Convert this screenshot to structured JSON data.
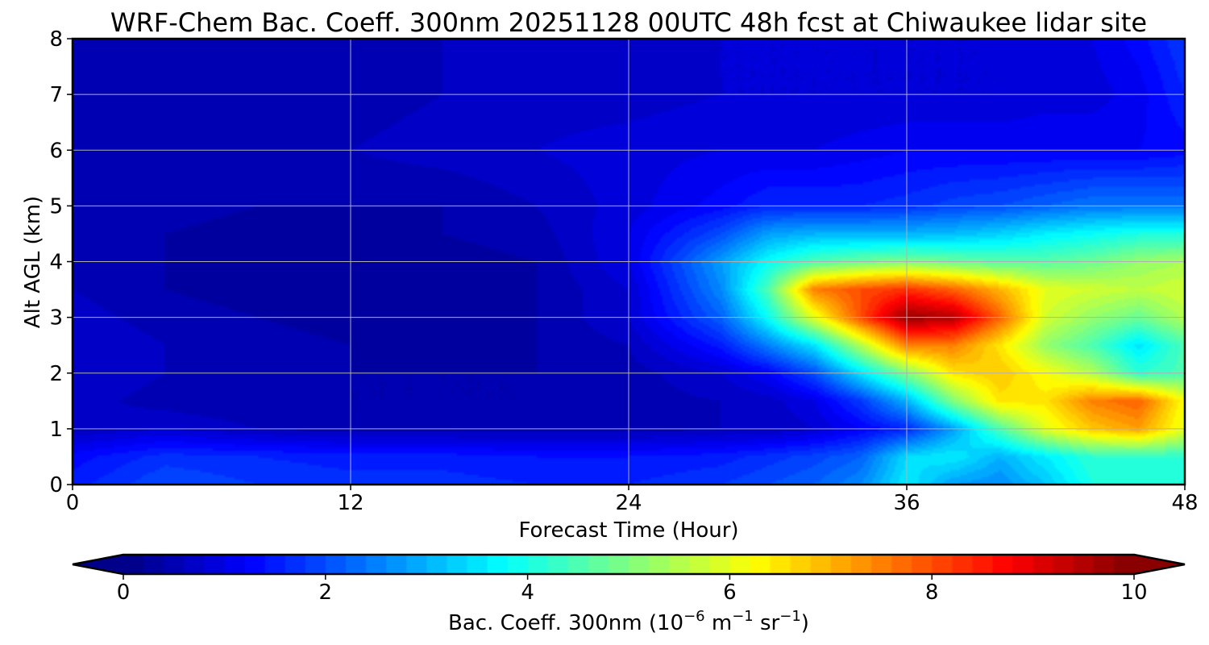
{
  "chart_data": {
    "type": "heatmap",
    "title": "WRF-Chem Bac. Coeff. 300nm  20251128 00UTC 48h fcst at Chiwaukee lidar site",
    "xlabel": "Forecast Time (Hour)",
    "ylabel": "Alt AGL (km)",
    "xlim": [
      0,
      48
    ],
    "ylim": [
      0,
      8
    ],
    "xticks": [
      "0",
      "12",
      "24",
      "36",
      "48"
    ],
    "yticks": [
      "0",
      "1",
      "2",
      "3",
      "4",
      "5",
      "6",
      "7",
      "8"
    ],
    "grid": true,
    "colormap": "jet",
    "colorbar": {
      "label_main": "Bac. Coeff. 300nm  (10",
      "label_exp1": "−6",
      "label_mid": " m",
      "label_exp2": "−1",
      "label_mid2": " sr",
      "label_exp3": "−1",
      "label_end": ")",
      "range": [
        0,
        10
      ],
      "extend": "both",
      "ticks": [
        "0",
        "2",
        "4",
        "6",
        "8",
        "10"
      ]
    },
    "x": [
      0,
      4,
      8,
      12,
      16,
      20,
      24,
      28,
      30,
      32,
      34,
      36,
      38,
      40,
      42,
      44,
      46,
      48
    ],
    "y": [
      0,
      0.5,
      1,
      1.5,
      2,
      2.5,
      3,
      3.5,
      4,
      4.5,
      5,
      6,
      7,
      8
    ],
    "z": [
      [
        1.5,
        2.0,
        1.8,
        1.7,
        1.7,
        1.6,
        1.6,
        1.8,
        2.0,
        2.2,
        2.6,
        3.6,
        2.8,
        2.6,
        3.2,
        4.0,
        4.0,
        4.0
      ],
      [
        1.3,
        1.7,
        1.6,
        1.5,
        1.5,
        1.4,
        1.4,
        1.5,
        1.7,
        1.9,
        2.2,
        3.4,
        3.6,
        3.0,
        3.6,
        4.2,
        4.2,
        4.2
      ],
      [
        0.6,
        0.8,
        0.6,
        0.5,
        0.5,
        0.5,
        0.5,
        0.6,
        0.6,
        0.8,
        1.2,
        1.6,
        2.8,
        4.5,
        6.0,
        6.8,
        7.2,
        6.0
      ],
      [
        0.7,
        0.5,
        0.4,
        0.4,
        0.4,
        0.4,
        0.5,
        0.6,
        0.7,
        1.0,
        1.8,
        3.0,
        5.0,
        6.5,
        6.5,
        7.5,
        7.8,
        6.2
      ],
      [
        0.8,
        0.6,
        0.5,
        0.4,
        0.4,
        0.4,
        0.5,
        0.8,
        1.2,
        2.0,
        3.5,
        5.0,
        6.5,
        6.8,
        6.2,
        5.5,
        4.2,
        4.5
      ],
      [
        0.8,
        0.6,
        0.5,
        0.4,
        0.3,
        0.4,
        0.6,
        1.5,
        2.5,
        3.5,
        5.5,
        7.5,
        7.5,
        6.5,
        5.2,
        4.5,
        3.5,
        4.5
      ],
      [
        0.7,
        0.5,
        0.4,
        0.3,
        0.3,
        0.4,
        0.8,
        2.2,
        3.8,
        6.0,
        8.0,
        9.8,
        9.5,
        7.8,
        5.8,
        5.2,
        4.8,
        5.5
      ],
      [
        0.6,
        0.4,
        0.3,
        0.3,
        0.3,
        0.4,
        0.8,
        2.6,
        4.5,
        7.5,
        8.0,
        8.3,
        7.8,
        7.0,
        6.0,
        5.8,
        5.6,
        5.8
      ],
      [
        0.6,
        0.4,
        0.3,
        0.3,
        0.3,
        0.4,
        1.0,
        2.8,
        3.8,
        4.5,
        4.8,
        5.0,
        4.8,
        4.6,
        4.6,
        4.8,
        5.2,
        5.4
      ],
      [
        0.6,
        0.4,
        0.3,
        0.3,
        0.4,
        0.5,
        1.0,
        2.0,
        2.8,
        3.0,
        3.0,
        3.0,
        3.1,
        3.3,
        3.6,
        3.8,
        4.0,
        4.0
      ],
      [
        0.6,
        0.5,
        0.4,
        0.4,
        0.4,
        0.6,
        0.9,
        1.3,
        1.6,
        1.6,
        1.6,
        1.7,
        1.9,
        2.0,
        2.2,
        2.4,
        2.4,
        2.4
      ],
      [
        0.5,
        0.5,
        0.5,
        0.6,
        0.7,
        0.8,
        0.9,
        1.0,
        1.0,
        1.0,
        1.1,
        1.2,
        1.2,
        1.2,
        1.2,
        1.2,
        1.2,
        1.3
      ],
      [
        0.5,
        0.4,
        0.4,
        0.5,
        0.6,
        0.7,
        0.7,
        0.8,
        0.8,
        0.8,
        0.8,
        0.8,
        0.8,
        0.8,
        0.9,
        0.9,
        1.1,
        1.6
      ],
      [
        0.6,
        0.5,
        0.4,
        0.5,
        0.6,
        0.6,
        0.7,
        0.8,
        0.8,
        0.8,
        0.8,
        0.8,
        0.8,
        0.8,
        0.9,
        1.0,
        1.3,
        1.8
      ]
    ]
  }
}
